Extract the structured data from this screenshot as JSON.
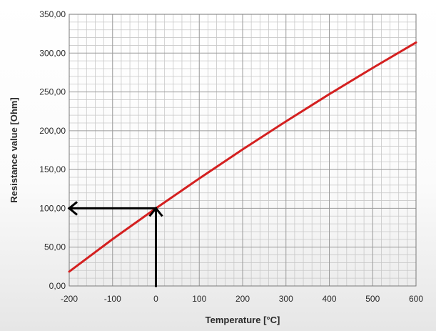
{
  "chart_data": {
    "type": "line",
    "xlabel": "Temperature  [°C]",
    "ylabel": "Resistance  value  [Ohm]",
    "xlim": [
      -200,
      600
    ],
    "ylim": [
      0,
      350
    ],
    "x_ticks": [
      "-200",
      "-100",
      "0",
      "100",
      "200",
      "300",
      "400",
      "500",
      "600"
    ],
    "y_ticks": [
      "0,00",
      "50,00",
      "100,00",
      "150,00",
      "200,00",
      "250,00",
      "300,00",
      "350,00"
    ],
    "grid": true,
    "series": [
      {
        "color": "#d42020",
        "x": [
          -200,
          -100,
          0,
          100,
          200,
          300,
          400,
          500,
          600
        ],
        "y": [
          18.5,
          60.3,
          100.0,
          138.5,
          175.9,
          212.1,
          247.1,
          280.9,
          313.7
        ]
      }
    ],
    "annotations": [
      {
        "type": "arrow",
        "from": [
          0,
          0
        ],
        "to": [
          0,
          100
        ],
        "color": "#000000"
      },
      {
        "type": "arrow",
        "from": [
          0,
          100
        ],
        "to": [
          -200,
          100
        ],
        "color": "#000000"
      }
    ]
  }
}
